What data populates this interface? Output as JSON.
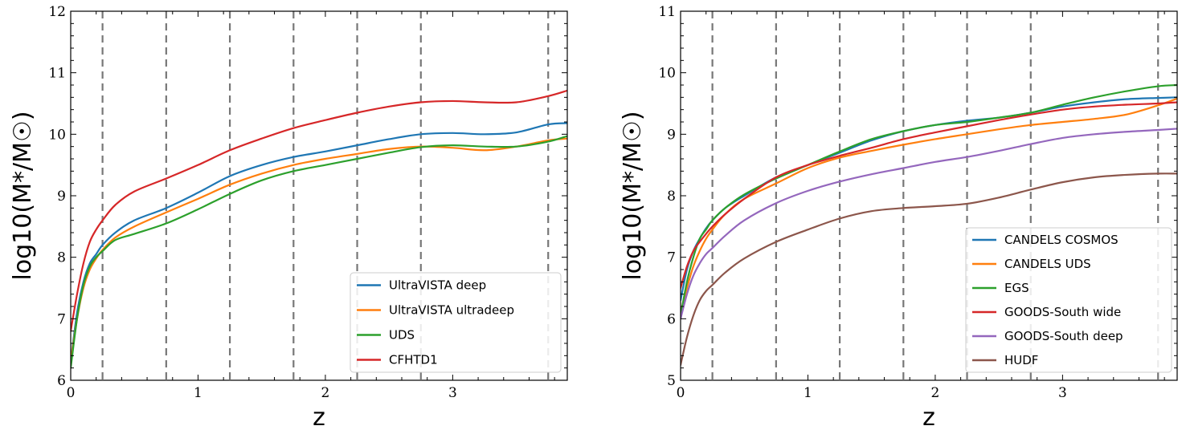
{
  "chart_data": [
    {
      "type": "line",
      "xlabel": "z",
      "ylabel": "log10(M*/M☉)",
      "xlim": [
        0,
        3.9
      ],
      "ylim": [
        6,
        12
      ],
      "xticks": [
        0,
        1,
        2,
        3
      ],
      "yticks": [
        6,
        7,
        8,
        9,
        10,
        11,
        12
      ],
      "vlines": [
        0.25,
        0.75,
        1.25,
        1.75,
        2.25,
        2.75,
        3.75
      ],
      "legend_loc": "lower right",
      "series": [
        {
          "name": "UltraVISTA deep",
          "color": "#1f77b4",
          "points": [
            [
              0,
              6.3
            ],
            [
              0.05,
              7.1
            ],
            [
              0.1,
              7.6
            ],
            [
              0.15,
              7.9
            ],
            [
              0.2,
              8.05
            ],
            [
              0.25,
              8.2
            ],
            [
              0.35,
              8.4
            ],
            [
              0.5,
              8.6
            ],
            [
              0.75,
              8.8
            ],
            [
              1.0,
              9.05
            ],
            [
              1.25,
              9.32
            ],
            [
              1.5,
              9.5
            ],
            [
              1.75,
              9.63
            ],
            [
              2.0,
              9.72
            ],
            [
              2.25,
              9.82
            ],
            [
              2.5,
              9.92
            ],
            [
              2.75,
              10.0
            ],
            [
              3.0,
              10.02
            ],
            [
              3.25,
              10.0
            ],
            [
              3.5,
              10.03
            ],
            [
              3.75,
              10.16
            ],
            [
              3.9,
              10.18
            ]
          ]
        },
        {
          "name": "UltraVISTA ultradeep",
          "color": "#ff7f0e",
          "points": [
            [
              0,
              6.3
            ],
            [
              0.05,
              7.0
            ],
            [
              0.1,
              7.5
            ],
            [
              0.15,
              7.8
            ],
            [
              0.2,
              7.98
            ],
            [
              0.25,
              8.12
            ],
            [
              0.35,
              8.32
            ],
            [
              0.5,
              8.5
            ],
            [
              0.75,
              8.73
            ],
            [
              1.0,
              8.95
            ],
            [
              1.25,
              9.18
            ],
            [
              1.5,
              9.36
            ],
            [
              1.75,
              9.5
            ],
            [
              2.0,
              9.6
            ],
            [
              2.25,
              9.68
            ],
            [
              2.5,
              9.76
            ],
            [
              2.75,
              9.8
            ],
            [
              3.0,
              9.78
            ],
            [
              3.25,
              9.74
            ],
            [
              3.5,
              9.8
            ],
            [
              3.75,
              9.9
            ],
            [
              3.9,
              9.93
            ]
          ]
        },
        {
          "name": "UDS",
          "color": "#2ca02c",
          "points": [
            [
              0,
              6.2
            ],
            [
              0.05,
              7.0
            ],
            [
              0.1,
              7.55
            ],
            [
              0.15,
              7.85
            ],
            [
              0.2,
              8.0
            ],
            [
              0.25,
              8.1
            ],
            [
              0.35,
              8.28
            ],
            [
              0.5,
              8.38
            ],
            [
              0.75,
              8.55
            ],
            [
              1.0,
              8.78
            ],
            [
              1.25,
              9.03
            ],
            [
              1.5,
              9.25
            ],
            [
              1.75,
              9.4
            ],
            [
              2.0,
              9.5
            ],
            [
              2.25,
              9.6
            ],
            [
              2.5,
              9.7
            ],
            [
              2.75,
              9.79
            ],
            [
              3.0,
              9.82
            ],
            [
              3.25,
              9.8
            ],
            [
              3.5,
              9.8
            ],
            [
              3.75,
              9.88
            ],
            [
              3.9,
              9.97
            ]
          ]
        },
        {
          "name": "CFHTD1",
          "color": "#d62728",
          "points": [
            [
              0,
              6.8
            ],
            [
              0.05,
              7.4
            ],
            [
              0.1,
              7.9
            ],
            [
              0.15,
              8.25
            ],
            [
              0.2,
              8.45
            ],
            [
              0.25,
              8.6
            ],
            [
              0.35,
              8.85
            ],
            [
              0.5,
              9.07
            ],
            [
              0.75,
              9.28
            ],
            [
              1.0,
              9.5
            ],
            [
              1.25,
              9.74
            ],
            [
              1.5,
              9.93
            ],
            [
              1.75,
              10.1
            ],
            [
              2.0,
              10.23
            ],
            [
              2.25,
              10.35
            ],
            [
              2.5,
              10.45
            ],
            [
              2.75,
              10.52
            ],
            [
              3.0,
              10.54
            ],
            [
              3.25,
              10.52
            ],
            [
              3.5,
              10.52
            ],
            [
              3.75,
              10.62
            ],
            [
              3.9,
              10.71
            ]
          ]
        }
      ]
    },
    {
      "type": "line",
      "xlabel": "z",
      "ylabel": "log10(M*/M☉)",
      "xlim": [
        0,
        3.9
      ],
      "ylim": [
        5,
        11
      ],
      "xticks": [
        0,
        1,
        2,
        3
      ],
      "yticks": [
        5,
        6,
        7,
        8,
        9,
        10,
        11
      ],
      "vlines": [
        0.25,
        0.75,
        1.25,
        1.75,
        2.25,
        2.75,
        3.75
      ],
      "legend_loc": "lower right",
      "series": [
        {
          "name": "CANDELS COSMOS",
          "color": "#1f77b4",
          "points": [
            [
              0,
              6.3
            ],
            [
              0.05,
              6.8
            ],
            [
              0.1,
              7.1
            ],
            [
              0.15,
              7.3
            ],
            [
              0.2,
              7.47
            ],
            [
              0.25,
              7.6
            ],
            [
              0.35,
              7.8
            ],
            [
              0.5,
              8.0
            ],
            [
              0.75,
              8.3
            ],
            [
              1.0,
              8.5
            ],
            [
              1.25,
              8.7
            ],
            [
              1.5,
              8.9
            ],
            [
              1.75,
              9.05
            ],
            [
              2.0,
              9.15
            ],
            [
              2.25,
              9.22
            ],
            [
              2.5,
              9.27
            ],
            [
              2.75,
              9.35
            ],
            [
              3.0,
              9.45
            ],
            [
              3.25,
              9.52
            ],
            [
              3.5,
              9.57
            ],
            [
              3.75,
              9.59
            ],
            [
              3.9,
              9.6
            ]
          ]
        },
        {
          "name": "CANDELS UDS",
          "color": "#ff7f0e",
          "points": [
            [
              0,
              6.1
            ],
            [
              0.05,
              6.5
            ],
            [
              0.1,
              6.85
            ],
            [
              0.15,
              7.1
            ],
            [
              0.2,
              7.3
            ],
            [
              0.25,
              7.45
            ],
            [
              0.35,
              7.7
            ],
            [
              0.5,
              7.95
            ],
            [
              0.75,
              8.2
            ],
            [
              1.0,
              8.45
            ],
            [
              1.25,
              8.62
            ],
            [
              1.5,
              8.73
            ],
            [
              1.75,
              8.83
            ],
            [
              2.0,
              8.92
            ],
            [
              2.25,
              9.0
            ],
            [
              2.5,
              9.08
            ],
            [
              2.75,
              9.15
            ],
            [
              3.0,
              9.2
            ],
            [
              3.25,
              9.25
            ],
            [
              3.5,
              9.32
            ],
            [
              3.75,
              9.47
            ],
            [
              3.9,
              9.58
            ]
          ]
        },
        {
          "name": "EGS",
          "color": "#2ca02c",
          "points": [
            [
              0,
              6.05
            ],
            [
              0.05,
              6.6
            ],
            [
              0.1,
              7.0
            ],
            [
              0.15,
              7.3
            ],
            [
              0.2,
              7.45
            ],
            [
              0.25,
              7.6
            ],
            [
              0.35,
              7.8
            ],
            [
              0.5,
              8.02
            ],
            [
              0.75,
              8.28
            ],
            [
              1.0,
              8.5
            ],
            [
              1.25,
              8.72
            ],
            [
              1.5,
              8.92
            ],
            [
              1.75,
              9.05
            ],
            [
              2.0,
              9.15
            ],
            [
              2.25,
              9.2
            ],
            [
              2.5,
              9.27
            ],
            [
              2.75,
              9.35
            ],
            [
              3.0,
              9.48
            ],
            [
              3.25,
              9.6
            ],
            [
              3.5,
              9.7
            ],
            [
              3.75,
              9.78
            ],
            [
              3.9,
              9.8
            ]
          ]
        },
        {
          "name": "GOODS-South wide",
          "color": "#d62728",
          "points": [
            [
              0,
              6.5
            ],
            [
              0.05,
              6.85
            ],
            [
              0.1,
              7.1
            ],
            [
              0.15,
              7.25
            ],
            [
              0.2,
              7.38
            ],
            [
              0.25,
              7.5
            ],
            [
              0.35,
              7.7
            ],
            [
              0.5,
              7.95
            ],
            [
              0.75,
              8.3
            ],
            [
              1.0,
              8.5
            ],
            [
              1.25,
              8.65
            ],
            [
              1.5,
              8.78
            ],
            [
              1.75,
              8.92
            ],
            [
              2.0,
              9.03
            ],
            [
              2.25,
              9.13
            ],
            [
              2.5,
              9.23
            ],
            [
              2.75,
              9.32
            ],
            [
              3.0,
              9.4
            ],
            [
              3.25,
              9.45
            ],
            [
              3.5,
              9.48
            ],
            [
              3.75,
              9.5
            ],
            [
              3.9,
              9.52
            ]
          ]
        },
        {
          "name": "GOODS-South deep",
          "color": "#9467bd",
          "points": [
            [
              0,
              6.0
            ],
            [
              0.05,
              6.4
            ],
            [
              0.1,
              6.7
            ],
            [
              0.15,
              6.9
            ],
            [
              0.2,
              7.05
            ],
            [
              0.25,
              7.15
            ],
            [
              0.35,
              7.35
            ],
            [
              0.5,
              7.6
            ],
            [
              0.75,
              7.88
            ],
            [
              1.0,
              8.08
            ],
            [
              1.25,
              8.23
            ],
            [
              1.5,
              8.35
            ],
            [
              1.75,
              8.45
            ],
            [
              2.0,
              8.55
            ],
            [
              2.25,
              8.63
            ],
            [
              2.5,
              8.73
            ],
            [
              2.75,
              8.84
            ],
            [
              3.0,
              8.94
            ],
            [
              3.25,
              9.0
            ],
            [
              3.5,
              9.04
            ],
            [
              3.75,
              9.07
            ],
            [
              3.9,
              9.09
            ]
          ]
        },
        {
          "name": "HUDF",
          "color": "#8c564b",
          "points": [
            [
              0,
              5.25
            ],
            [
              0.05,
              5.7
            ],
            [
              0.1,
              6.05
            ],
            [
              0.15,
              6.3
            ],
            [
              0.2,
              6.45
            ],
            [
              0.25,
              6.55
            ],
            [
              0.35,
              6.75
            ],
            [
              0.5,
              6.98
            ],
            [
              0.75,
              7.25
            ],
            [
              1.0,
              7.45
            ],
            [
              1.25,
              7.63
            ],
            [
              1.5,
              7.75
            ],
            [
              1.75,
              7.8
            ],
            [
              2.0,
              7.83
            ],
            [
              2.25,
              7.87
            ],
            [
              2.5,
              7.97
            ],
            [
              2.75,
              8.1
            ],
            [
              3.0,
              8.22
            ],
            [
              3.25,
              8.3
            ],
            [
              3.5,
              8.34
            ],
            [
              3.75,
              8.36
            ],
            [
              3.9,
              8.36
            ]
          ]
        }
      ]
    }
  ]
}
